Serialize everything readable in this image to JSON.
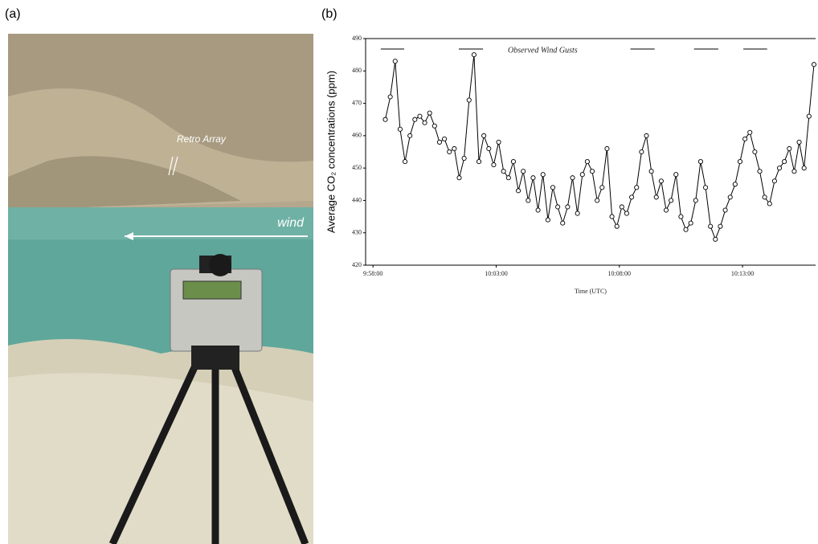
{
  "figure": {
    "label_a": "(a)",
    "label_b": "(b)",
    "photo_label_retro": "Retro Array",
    "photo_label_wind": "wind"
  },
  "chart_data": {
    "type": "line",
    "annotation": "Observed Wind Gusts",
    "xlabel": "Time (UTC)",
    "ylabel": "Average CO₂ concentrations (ppm)",
    "x": [
      35910,
      35922,
      35934,
      35946,
      35958,
      35970,
      35982,
      35994,
      36006,
      36018,
      36030,
      36042,
      36054,
      36066,
      36078,
      36090,
      36102,
      36114,
      36126,
      36138,
      36150,
      36162,
      36174,
      36186,
      36198,
      36210,
      36222,
      36234,
      36246,
      36258,
      36270,
      36282,
      36294,
      36306,
      36318,
      36330,
      36342,
      36354,
      36366,
      36378,
      36390,
      36402,
      36414,
      36426,
      36438,
      36450,
      36462,
      36474,
      36486,
      36498,
      36510,
      36522,
      36534,
      36546,
      36558,
      36570,
      36582,
      36594,
      36606,
      36618,
      36630,
      36642,
      36654,
      36666,
      36678,
      36690,
      36702,
      36714,
      36726,
      36738,
      36750,
      36762,
      36774,
      36786,
      36798,
      36810,
      36822,
      36834,
      36846,
      36858,
      36870,
      36882,
      36894,
      36906,
      36918,
      36930,
      36942,
      36954
    ],
    "series": [
      {
        "color": "#000000",
        "values": [
          465,
          472,
          483,
          462,
          452,
          460,
          465,
          466,
          464,
          467,
          463,
          458,
          459,
          455,
          456,
          447,
          453,
          471,
          485,
          452,
          460,
          456,
          451,
          458,
          449,
          447,
          452,
          443,
          449,
          440,
          447,
          437,
          448,
          434,
          444,
          438,
          433,
          438,
          447,
          436,
          448,
          452,
          449,
          440,
          444,
          456,
          435,
          432,
          438,
          436,
          441,
          444,
          455,
          460,
          449,
          441,
          446,
          437,
          440,
          448,
          435,
          431,
          433,
          440,
          452,
          444,
          432,
          428,
          432,
          437,
          441,
          445,
          452,
          459,
          461,
          455,
          449,
          441,
          439,
          446,
          450,
          452,
          456,
          449,
          458,
          450,
          466,
          482
        ]
      }
    ],
    "gusts": [
      [
        35899,
        35956
      ],
      [
        36089,
        36148
      ],
      [
        36507,
        36566
      ],
      [
        36662,
        36721
      ],
      [
        36782,
        36840
      ]
    ],
    "xlim": [
      35862,
      36958
    ],
    "ylim": [
      420,
      490
    ],
    "xticks": [
      {
        "value": 35880,
        "label": "9:58:00"
      },
      {
        "value": 36180,
        "label": "10:03:00"
      },
      {
        "value": 36480,
        "label": "10:08:00"
      },
      {
        "value": 36780,
        "label": "10:13:00"
      }
    ],
    "yticks": [
      420,
      430,
      440,
      450,
      460,
      470,
      480,
      490
    ]
  }
}
